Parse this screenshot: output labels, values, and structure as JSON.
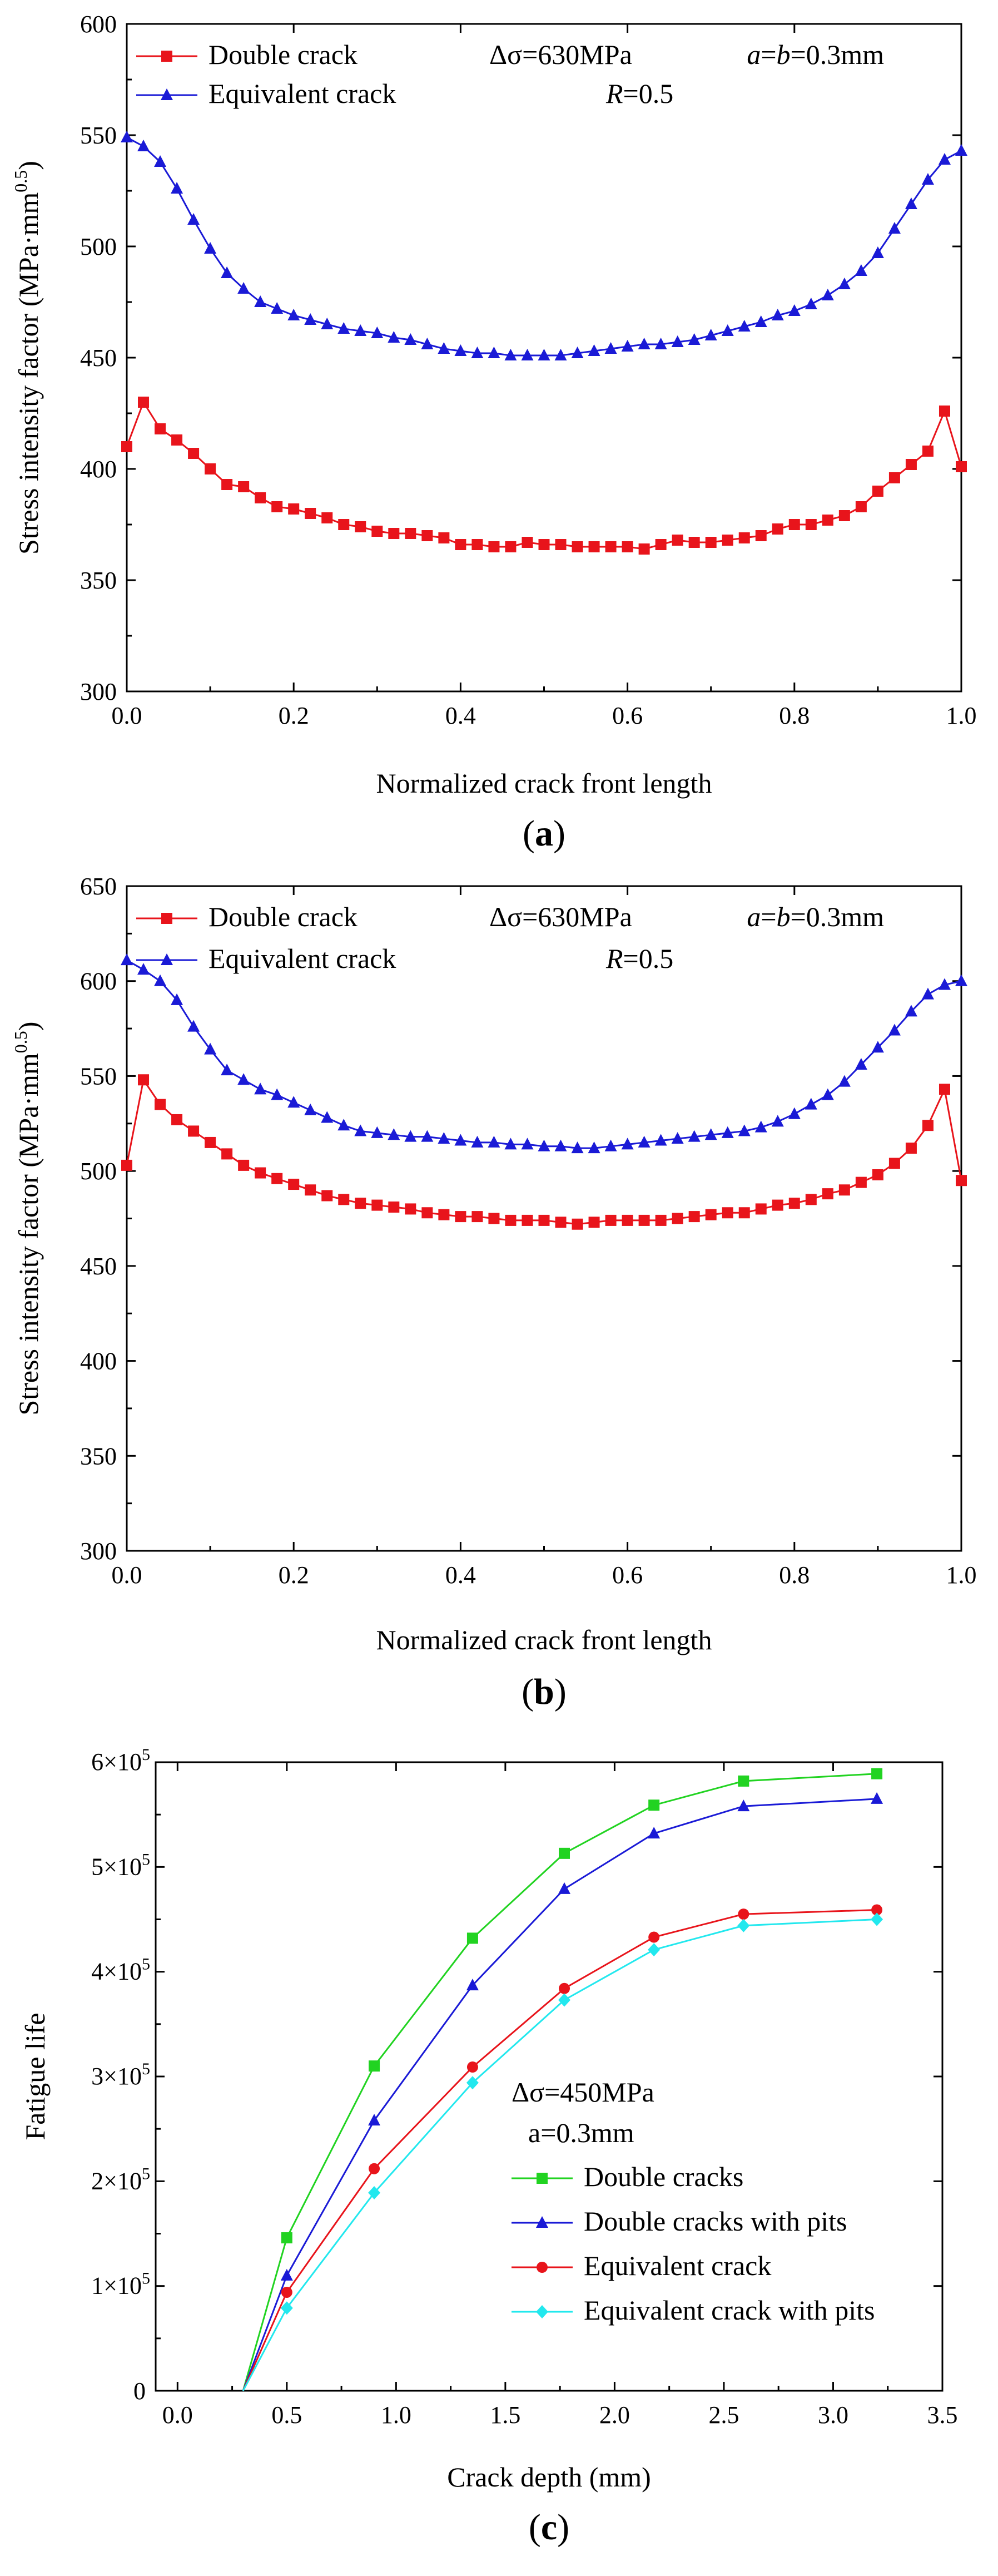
{
  "chart_data": [
    {
      "type": "line",
      "panel_label": "(a)",
      "xlabel": "Normalized crack front length",
      "ylabel": "Stress intensity factor (MPa·mm",
      "ylabel_exponent": "0.5",
      "ylabel_close": ")",
      "xlim": [
        0.0,
        1.0
      ],
      "ylim": [
        300,
        600
      ],
      "xticks": [
        "0.0",
        "0.2",
        "0.4",
        "0.6",
        "0.8",
        "1.0"
      ],
      "yticks": [
        "300",
        "350",
        "400",
        "450",
        "500",
        "550",
        "600"
      ],
      "annotations": {
        "stress_range": "Δσ=630MPa",
        "crack_size": "a=b=0.3mm",
        "crack_size_italic": "a",
        "crack_size_mid": "=",
        "crack_size_italic2": "b",
        "crack_size_tail": "=0.3mm",
        "ratio_italic": "R",
        "ratio_tail": "=0.5"
      },
      "series": [
        {
          "name": "Double crack",
          "color": "#e8141b",
          "marker": "square",
          "x": [
            0.0,
            0.02,
            0.04,
            0.06,
            0.08,
            0.1,
            0.12,
            0.14,
            0.16,
            0.18,
            0.2,
            0.22,
            0.24,
            0.26,
            0.28,
            0.3,
            0.32,
            0.34,
            0.36,
            0.38,
            0.4,
            0.42,
            0.44,
            0.46,
            0.48,
            0.5,
            0.52,
            0.54,
            0.56,
            0.58,
            0.6,
            0.62,
            0.64,
            0.66,
            0.68,
            0.7,
            0.72,
            0.74,
            0.76,
            0.78,
            0.8,
            0.82,
            0.84,
            0.86,
            0.88,
            0.9,
            0.92,
            0.94,
            0.96,
            0.98,
            1.0
          ],
          "values": [
            410,
            430,
            418,
            413,
            407,
            400,
            393,
            392,
            387,
            383,
            382,
            380,
            378,
            375,
            374,
            372,
            371,
            371,
            370,
            369,
            366,
            366,
            365,
            365,
            367,
            366,
            366,
            365,
            365,
            365,
            365,
            364,
            366,
            368,
            367,
            367,
            368,
            369,
            370,
            373,
            375,
            375,
            377,
            379,
            383,
            390,
            396,
            402,
            408,
            426,
            401
          ]
        },
        {
          "name": "Equivalent crack",
          "color": "#1a1ad6",
          "marker": "triangle",
          "x": [
            0.0,
            0.02,
            0.04,
            0.06,
            0.08,
            0.1,
            0.12,
            0.14,
            0.16,
            0.18,
            0.2,
            0.22,
            0.24,
            0.26,
            0.28,
            0.3,
            0.32,
            0.34,
            0.36,
            0.38,
            0.4,
            0.42,
            0.44,
            0.46,
            0.48,
            0.5,
            0.52,
            0.54,
            0.56,
            0.58,
            0.6,
            0.62,
            0.64,
            0.66,
            0.68,
            0.7,
            0.72,
            0.74,
            0.76,
            0.78,
            0.8,
            0.82,
            0.84,
            0.86,
            0.88,
            0.9,
            0.92,
            0.94,
            0.96,
            0.98,
            1.0
          ],
          "values": [
            549,
            545,
            538,
            526,
            512,
            499,
            488,
            481,
            475,
            472,
            469,
            467,
            465,
            463,
            462,
            461,
            459,
            458,
            456,
            454,
            453,
            452,
            452,
            451,
            451,
            451,
            451,
            452,
            453,
            454,
            455,
            456,
            456,
            457,
            458,
            460,
            462,
            464,
            466,
            469,
            471,
            474,
            478,
            483,
            489,
            497,
            508,
            519,
            530,
            539,
            543
          ]
        }
      ]
    },
    {
      "type": "line",
      "panel_label": "(b)",
      "xlabel": "Normalized crack front length",
      "ylabel": "Stress intensity factor (MPa·mm",
      "ylabel_exponent": "0.5",
      "ylabel_close": ")",
      "xlim": [
        0.0,
        1.0
      ],
      "ylim": [
        300,
        650
      ],
      "xticks": [
        "0.0",
        "0.2",
        "0.4",
        "0.6",
        "0.8",
        "1.0"
      ],
      "yticks": [
        "300",
        "350",
        "400",
        "450",
        "500",
        "550",
        "600",
        "650"
      ],
      "annotations": {
        "stress_range": "Δσ=630MPa",
        "crack_size": "a=b=0.3mm",
        "crack_size_italic": "a",
        "crack_size_mid": "=",
        "crack_size_italic2": "b",
        "crack_size_tail": "=0.3mm",
        "ratio_italic": "R",
        "ratio_tail": "=0.5"
      },
      "series": [
        {
          "name": "Double crack",
          "color": "#e8141b",
          "marker": "square",
          "x": [
            0.0,
            0.02,
            0.04,
            0.06,
            0.08,
            0.1,
            0.12,
            0.14,
            0.16,
            0.18,
            0.2,
            0.22,
            0.24,
            0.26,
            0.28,
            0.3,
            0.32,
            0.34,
            0.36,
            0.38,
            0.4,
            0.42,
            0.44,
            0.46,
            0.48,
            0.5,
            0.52,
            0.54,
            0.56,
            0.58,
            0.6,
            0.62,
            0.64,
            0.66,
            0.68,
            0.7,
            0.72,
            0.74,
            0.76,
            0.78,
            0.8,
            0.82,
            0.84,
            0.86,
            0.88,
            0.9,
            0.92,
            0.94,
            0.96,
            0.98,
            1.0
          ],
          "values": [
            503,
            548,
            535,
            527,
            521,
            515,
            509,
            503,
            499,
            496,
            493,
            490,
            487,
            485,
            483,
            482,
            481,
            480,
            478,
            477,
            476,
            476,
            475,
            474,
            474,
            474,
            473,
            472,
            473,
            474,
            474,
            474,
            474,
            475,
            476,
            477,
            478,
            478,
            480,
            482,
            483,
            485,
            488,
            490,
            494,
            498,
            504,
            512,
            524,
            543,
            495
          ]
        },
        {
          "name": "Equivalent crack",
          "color": "#1a1ad6",
          "marker": "triangle",
          "x": [
            0.0,
            0.02,
            0.04,
            0.06,
            0.08,
            0.1,
            0.12,
            0.14,
            0.16,
            0.18,
            0.2,
            0.22,
            0.24,
            0.26,
            0.28,
            0.3,
            0.32,
            0.34,
            0.36,
            0.38,
            0.4,
            0.42,
            0.44,
            0.46,
            0.48,
            0.5,
            0.52,
            0.54,
            0.56,
            0.58,
            0.6,
            0.62,
            0.64,
            0.66,
            0.68,
            0.7,
            0.72,
            0.74,
            0.76,
            0.78,
            0.8,
            0.82,
            0.84,
            0.86,
            0.88,
            0.9,
            0.92,
            0.94,
            0.96,
            0.98,
            1.0
          ],
          "values": [
            611,
            606,
            600,
            590,
            576,
            564,
            553,
            548,
            543,
            540,
            536,
            532,
            528,
            524,
            521,
            520,
            519,
            518,
            518,
            517,
            516,
            515,
            515,
            514,
            514,
            513,
            513,
            512,
            512,
            513,
            514,
            515,
            516,
            517,
            518,
            519,
            520,
            521,
            523,
            526,
            530,
            535,
            540,
            547,
            556,
            565,
            574,
            584,
            593,
            598,
            600
          ]
        }
      ]
    },
    {
      "type": "line",
      "panel_label": "(c)",
      "xlabel": "Crack depth (mm)",
      "ylabel": "Fatigue life",
      "xlim": [
        -0.1,
        3.5
      ],
      "ylim": [
        0,
        600000
      ],
      "xticks": [
        "0.0",
        "0.5",
        "1.0",
        "1.5",
        "2.0",
        "2.5",
        "3.0",
        "3.5"
      ],
      "yticks": [
        "0",
        "1×10",
        "2×10",
        "3×10",
        "4×10",
        "5×10",
        "6×10"
      ],
      "ytick_exponent": "5",
      "annotations": {
        "stress_range": "Δσ=450MPa",
        "crack_size": "a=0.3mm"
      },
      "series": [
        {
          "name": "Double cracks",
          "color": "#21d321",
          "marker": "square",
          "x": [
            0.3,
            0.5,
            0.9,
            1.35,
            1.77,
            2.18,
            2.59,
            3.2
          ],
          "values": [
            0,
            146000,
            310000,
            432000,
            513000,
            559000,
            582000,
            589000
          ]
        },
        {
          "name": "Double cracks with pits",
          "color": "#1a1ad6",
          "marker": "triangle",
          "x": [
            0.3,
            0.5,
            0.9,
            1.35,
            1.77,
            2.18,
            2.59,
            3.2
          ],
          "values": [
            0,
            110000,
            258000,
            387000,
            479000,
            532000,
            558000,
            565000
          ]
        },
        {
          "name": "Equivalent crack",
          "color": "#e8141b",
          "marker": "circle",
          "x": [
            0.3,
            0.5,
            0.9,
            1.35,
            1.77,
            2.18,
            2.59,
            3.2
          ],
          "values": [
            0,
            94000,
            212000,
            309000,
            384000,
            433000,
            455000,
            459000
          ]
        },
        {
          "name": "Equivalent crack with pits",
          "color": "#22e8ee",
          "marker": "diamond",
          "x": [
            0.3,
            0.5,
            0.9,
            1.35,
            1.77,
            2.18,
            2.59,
            3.2
          ],
          "values": [
            0,
            79000,
            189000,
            294000,
            373000,
            421000,
            444000,
            450000
          ]
        }
      ]
    }
  ]
}
